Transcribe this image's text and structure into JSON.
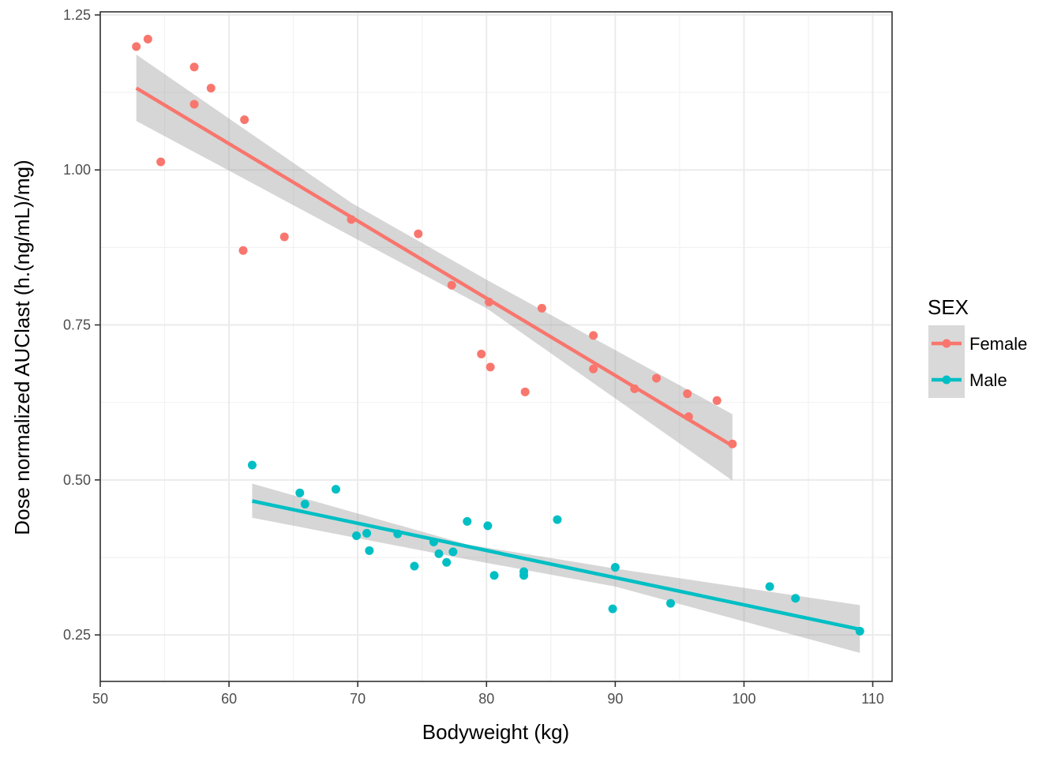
{
  "chart_data": {
    "type": "scatter",
    "xlabel": "Bodyweight (kg)",
    "ylabel": "Dose normalized AUClast (h.(ng/mL)/mg)",
    "xlim": [
      50,
      111.5
    ],
    "ylim": [
      0.175,
      1.255
    ],
    "x_ticks": [
      "50",
      "60",
      "70",
      "80",
      "90",
      "100",
      "110"
    ],
    "x_tick_values": [
      50,
      60,
      70,
      80,
      90,
      100,
      110
    ],
    "y_ticks": [
      "0.25",
      "0.50",
      "0.75",
      "1.00",
      "1.25"
    ],
    "y_tick_values": [
      0.25,
      0.5,
      0.75,
      1.0,
      1.25
    ],
    "grid": true,
    "legend": {
      "title": "SEX",
      "position": "right"
    },
    "series": [
      {
        "name": "Female",
        "color": "#f8766d",
        "points": [
          [
            52.8,
            1.199
          ],
          [
            53.7,
            1.211
          ],
          [
            54.7,
            1.013
          ],
          [
            57.3,
            1.166
          ],
          [
            57.3,
            1.106
          ],
          [
            58.6,
            1.132
          ],
          [
            61.2,
            1.081
          ],
          [
            61.1,
            0.87
          ],
          [
            64.3,
            0.892
          ],
          [
            69.5,
            0.92
          ],
          [
            74.7,
            0.897
          ],
          [
            77.3,
            0.814
          ],
          [
            80.2,
            0.787
          ],
          [
            79.6,
            0.703
          ],
          [
            80.3,
            0.682
          ],
          [
            84.3,
            0.777
          ],
          [
            83.0,
            0.642
          ],
          [
            88.3,
            0.733
          ],
          [
            88.3,
            0.679
          ],
          [
            91.5,
            0.647
          ],
          [
            93.2,
            0.664
          ],
          [
            95.6,
            0.639
          ],
          [
            95.7,
            0.602
          ],
          [
            97.9,
            0.628
          ],
          [
            99.1,
            0.558
          ]
        ],
        "fit": {
          "x": [
            52.8,
            99.1
          ],
          "y": [
            1.132,
            0.555
          ]
        },
        "ci": {
          "x": [
            52.8,
            69.5,
            80.0,
            99.1
          ],
          "lower": [
            1.079,
            0.893,
            0.777,
            0.499
          ],
          "upper": [
            1.186,
            0.947,
            0.823,
            0.606
          ]
        }
      },
      {
        "name": "Male",
        "color": "#00bfc4",
        "points": [
          [
            61.8,
            0.524
          ],
          [
            65.5,
            0.479
          ],
          [
            65.9,
            0.461
          ],
          [
            68.3,
            0.485
          ],
          [
            69.9,
            0.41
          ],
          [
            70.7,
            0.414
          ],
          [
            70.9,
            0.386
          ],
          [
            73.1,
            0.413
          ],
          [
            74.4,
            0.361
          ],
          [
            75.9,
            0.4
          ],
          [
            76.3,
            0.381
          ],
          [
            76.9,
            0.367
          ],
          [
            77.4,
            0.384
          ],
          [
            78.5,
            0.433
          ],
          [
            80.1,
            0.426
          ],
          [
            80.6,
            0.346
          ],
          [
            82.9,
            0.352
          ],
          [
            82.9,
            0.346
          ],
          [
            85.5,
            0.436
          ],
          [
            89.8,
            0.292
          ],
          [
            90.0,
            0.359
          ],
          [
            94.3,
            0.301
          ],
          [
            102.0,
            0.328
          ],
          [
            104.0,
            0.309
          ],
          [
            109.0,
            0.256
          ]
        ],
        "fit": {
          "x": [
            61.8,
            109.0
          ],
          "y": [
            0.466,
            0.259
          ]
        },
        "ci": {
          "x": [
            61.8,
            78.5,
            90.0,
            109.0
          ],
          "lower": [
            0.439,
            0.372,
            0.328,
            0.221
          ],
          "upper": [
            0.494,
            0.396,
            0.357,
            0.298
          ]
        }
      }
    ]
  }
}
